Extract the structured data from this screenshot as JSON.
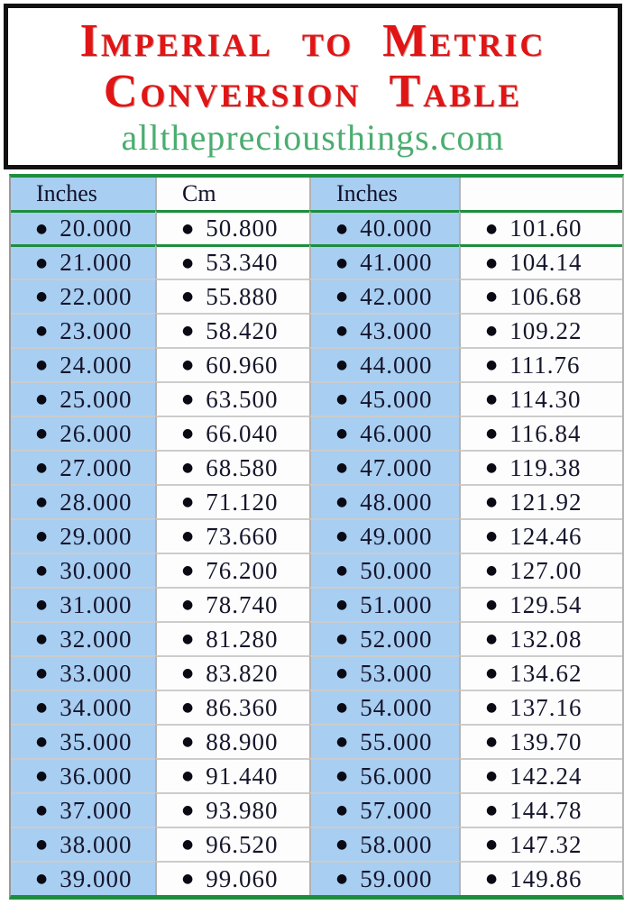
{
  "header": {
    "title_line1": "Imperial to Metric",
    "title_line2": "Conversion Table",
    "website": "allthepreciousthings.com"
  },
  "table": {
    "bullet": "●",
    "columns": [
      "Inches",
      "Cm",
      "Inches",
      ""
    ],
    "rows": [
      [
        "20.000",
        "50.800",
        "40.000",
        "101.60"
      ],
      [
        "21.000",
        "53.340",
        "41.000",
        "104.14"
      ],
      [
        "22.000",
        "55.880",
        "42.000",
        "106.68"
      ],
      [
        "23.000",
        "58.420",
        "43.000",
        "109.22"
      ],
      [
        "24.000",
        "60.960",
        "44.000",
        "111.76"
      ],
      [
        "25.000",
        "63.500",
        "45.000",
        "114.30"
      ],
      [
        "26.000",
        "66.040",
        "46.000",
        "116.84"
      ],
      [
        "27.000",
        "68.580",
        "47.000",
        "119.38"
      ],
      [
        "28.000",
        "71.120",
        "48.000",
        "121.92"
      ],
      [
        "29.000",
        "73.660",
        "49.000",
        "124.46"
      ],
      [
        "30.000",
        "76.200",
        "50.000",
        "127.00"
      ],
      [
        "31.000",
        "78.740",
        "51.000",
        "129.54"
      ],
      [
        "32.000",
        "81.280",
        "52.000",
        "132.08"
      ],
      [
        "33.000",
        "83.820",
        "53.000",
        "134.62"
      ],
      [
        "34.000",
        "86.360",
        "54.000",
        "137.16"
      ],
      [
        "35.000",
        "88.900",
        "55.000",
        "139.70"
      ],
      [
        "36.000",
        "91.440",
        "56.000",
        "142.24"
      ],
      [
        "37.000",
        "93.980",
        "57.000",
        "144.78"
      ],
      [
        "38.000",
        "96.520",
        "58.000",
        "147.32"
      ],
      [
        "39.000",
        "99.060",
        "59.000",
        "149.86"
      ]
    ]
  },
  "colors": {
    "title_red": "#e11515",
    "website_green": "#4bad70",
    "cell_blue": "#a8cef2",
    "line_green": "#1e8e3e",
    "separator_gray": "#cccccc",
    "text_dark": "#15152b"
  }
}
